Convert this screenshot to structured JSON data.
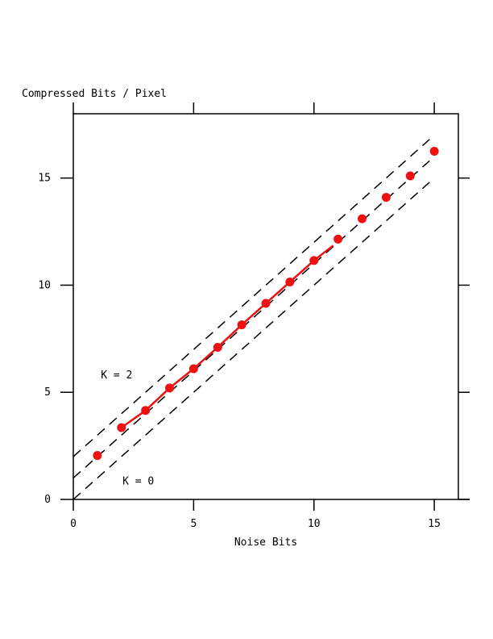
{
  "chart_data": {
    "type": "scatter",
    "title": "Compressed Bits / Pixel",
    "xlabel": "Noise Bits",
    "ylabel": "",
    "xlim": [
      0,
      16
    ],
    "ylim": [
      0,
      18
    ],
    "xticks": [
      0,
      5,
      10,
      15
    ],
    "yticks": [
      0,
      5,
      10,
      15
    ],
    "tick_labels": {
      "x": [
        "0",
        "5",
        "10",
        "15"
      ],
      "y": [
        "0",
        "5",
        "10",
        "15"
      ]
    },
    "grid": false,
    "series": [
      {
        "kind": "points",
        "x": [
          1,
          2,
          3,
          4,
          5,
          6,
          7,
          8,
          9,
          10,
          11,
          12,
          13,
          14,
          15
        ],
        "y": [
          2.05,
          3.35,
          4.15,
          5.2,
          6.1,
          7.1,
          8.15,
          9.15,
          10.15,
          11.15,
          12.15,
          13.1,
          14.1,
          15.1,
          16.25
        ],
        "color": "#ee1111"
      },
      {
        "kind": "line",
        "x": [
          2,
          3,
          4,
          5,
          6,
          7,
          8,
          9,
          10,
          10.8
        ],
        "y": [
          3.35,
          4.15,
          5.2,
          6.1,
          7.1,
          8.15,
          9.15,
          10.15,
          11.15,
          11.85
        ],
        "color": "#ee1111"
      }
    ],
    "reference_lines": [
      {
        "label": "K = 0",
        "intercept": 0,
        "slope": 1,
        "x_range": [
          0,
          14.8
        ]
      },
      {
        "label": "",
        "intercept": 1,
        "slope": 1,
        "x_range": [
          0,
          14.8
        ]
      },
      {
        "label": "K = 2",
        "intercept": 2,
        "slope": 1,
        "x_range": [
          0,
          14.8
        ]
      }
    ],
    "annotations": [
      {
        "text": "K = 2",
        "x": 1.8,
        "y": 5.8
      },
      {
        "text": "K = 0",
        "x": 2.7,
        "y": 0.85
      }
    ]
  }
}
